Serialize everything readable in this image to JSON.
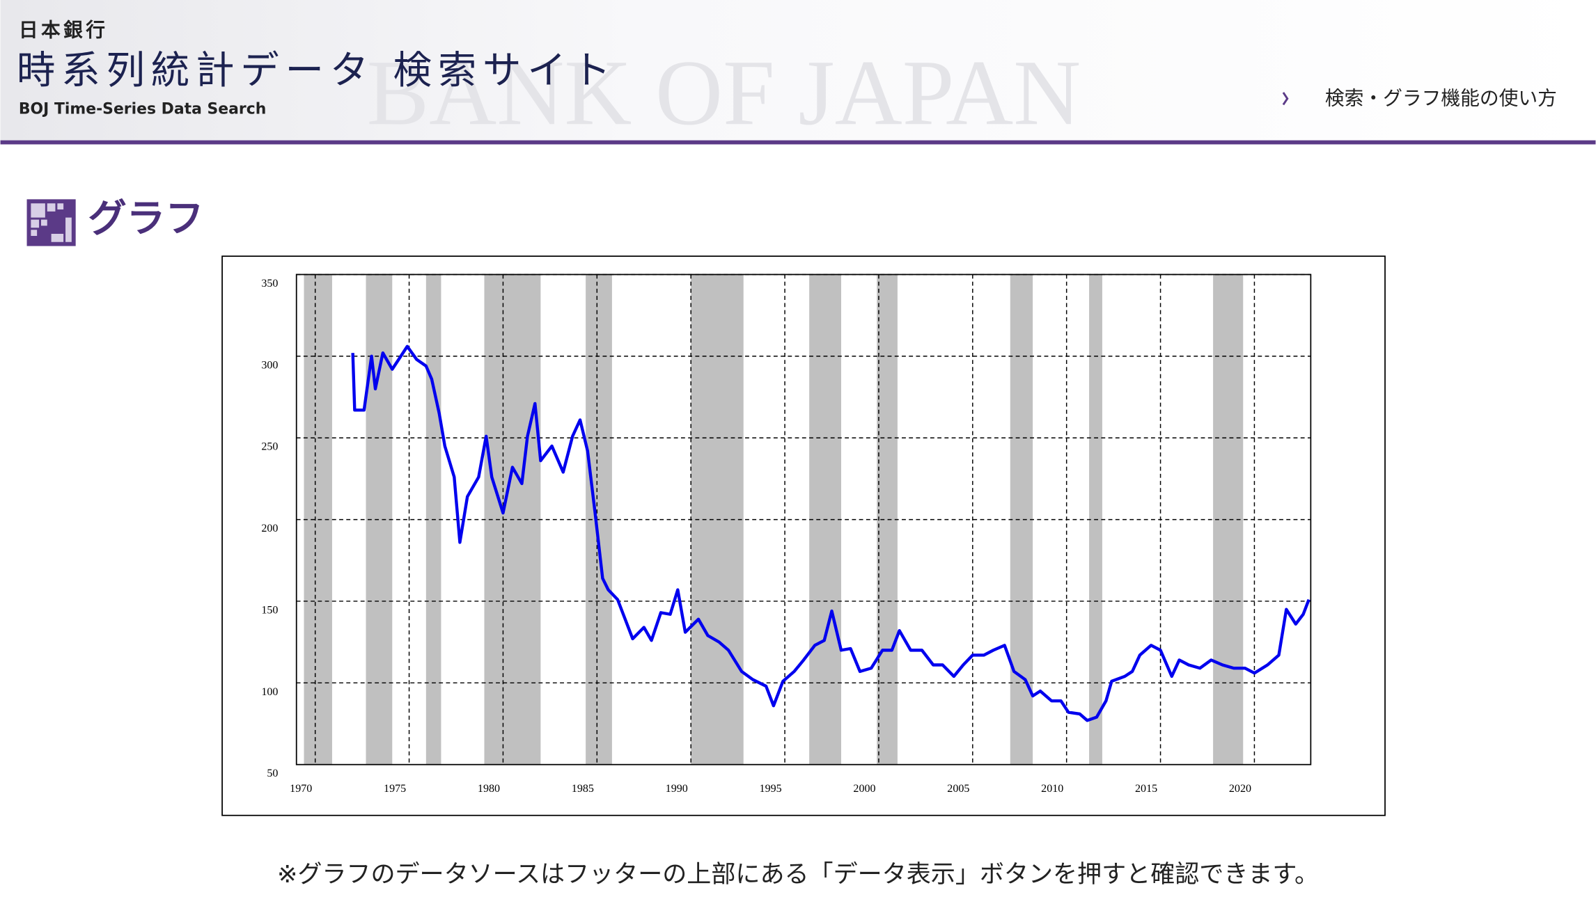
{
  "header": {
    "org": "日本銀行",
    "title": "時系列統計データ 検索サイト",
    "subtitle": "BOJ Time-Series Data Search",
    "watermark": "BANK OF JAPAN",
    "help_link": "検索・グラフ機能の使い方"
  },
  "section_title": "グラフ",
  "chart_data": {
    "type": "line",
    "x": [
      1972.0,
      1972.1,
      1972.6,
      1973.0,
      1973.2,
      1973.6,
      1974.1,
      1974.9,
      1975.4,
      1975.9,
      1976.2,
      1976.6,
      1976.9,
      1977.4,
      1977.7,
      1978.1,
      1978.7,
      1979.1,
      1979.4,
      1980.0,
      1980.5,
      1981.0,
      1981.3,
      1981.7,
      1982.0,
      1982.6,
      1983.2,
      1983.7,
      1984.1,
      1984.5,
      1984.9,
      1985.3,
      1985.6,
      1986.1,
      1986.4,
      1986.9,
      1987.5,
      1987.9,
      1988.4,
      1988.9,
      1989.3,
      1989.7,
      1990.4,
      1990.9,
      1991.5,
      1992.0,
      1992.7,
      1993.3,
      1994.0,
      1994.4,
      1994.9,
      1995.5,
      1996.0,
      1996.6,
      1997.1,
      1997.5,
      1998.0,
      1998.5,
      1999.0,
      1999.6,
      2000.2,
      2000.7,
      2001.1,
      2001.7,
      2002.3,
      2002.9,
      2003.4,
      2004.0,
      2004.5,
      2005.0,
      2005.6,
      2006.1,
      2006.7,
      2007.2,
      2007.8,
      2008.2,
      2008.6,
      2009.2,
      2009.7,
      2010.1,
      2010.7,
      2011.1,
      2011.6,
      2012.1,
      2012.4,
      2013.1,
      2013.5,
      2013.9,
      2014.5,
      2015.0,
      2015.6,
      2016.0,
      2016.5,
      2017.1,
      2017.7,
      2018.3,
      2018.9,
      2019.5,
      2020.0,
      2020.7,
      2021.3,
      2021.7,
      2022.2,
      2022.6,
      2022.9
    ],
    "series": [
      {
        "color": "#0000ee",
        "values": [
          302,
          267,
          267,
          300,
          280,
          302,
          292,
          306,
          298,
          294,
          286,
          265,
          245,
          226,
          186,
          214,
          226,
          251,
          226,
          204,
          232,
          222,
          251,
          271,
          236,
          245,
          229,
          251,
          261,
          242,
          204,
          164,
          157,
          151,
          142,
          127,
          134,
          126,
          143,
          142,
          157,
          131,
          139,
          129,
          125,
          120,
          107,
          102,
          98,
          86,
          101,
          107,
          114,
          123,
          126,
          144,
          120,
          121,
          107,
          109,
          120,
          120,
          132,
          120,
          120,
          111,
          111,
          104,
          111,
          117,
          117,
          120,
          123,
          107,
          102,
          92,
          95,
          89,
          89,
          82,
          81,
          77,
          79,
          89,
          101,
          104,
          107,
          117,
          123,
          120,
          104,
          114,
          111,
          109,
          114,
          111,
          109,
          109,
          106,
          111,
          117,
          145,
          136,
          142,
          151
        ]
      }
    ],
    "shaded": [
      [
        1969.4,
        1970.9
      ],
      [
        1972.7,
        1974.1
      ],
      [
        1975.9,
        1976.7
      ],
      [
        1979.0,
        1982.0
      ],
      [
        1984.4,
        1985.8
      ],
      [
        1990.0,
        1992.8
      ],
      [
        1996.3,
        1998.0
      ],
      [
        1999.9,
        2001.0
      ],
      [
        2007.0,
        2008.2
      ],
      [
        2011.2,
        2011.9
      ],
      [
        2017.8,
        2019.4
      ]
    ],
    "shade_color": "#c0c0c0",
    "xlim": [
      1969,
      2023
    ],
    "xticks": [
      1970,
      1975,
      1980,
      1985,
      1990,
      1995,
      2000,
      2005,
      2010,
      2015,
      2020
    ],
    "ylim": [
      50,
      350
    ],
    "yticks": [
      50,
      100,
      150,
      200,
      250,
      300,
      350
    ],
    "grid": true
  },
  "footnote": "※グラフのデータソースはフッターの上部にある「データ表示」ボタンを押すと確認できます。"
}
